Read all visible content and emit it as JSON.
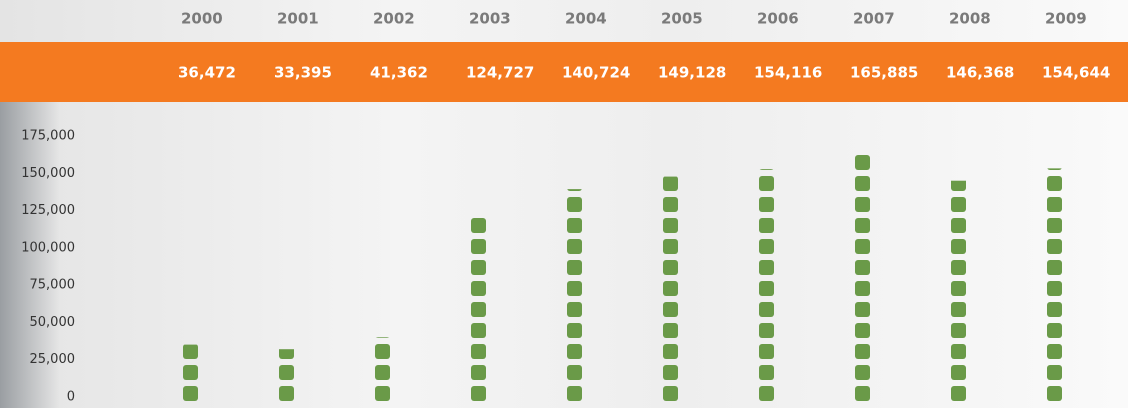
{
  "chart_data": {
    "type": "bar",
    "categories": [
      "2000",
      "2001",
      "2002",
      "2003",
      "2004",
      "2005",
      "2006",
      "2007",
      "2008",
      "2009"
    ],
    "values": [
      36472,
      33395,
      41362,
      124727,
      140724,
      149128,
      154116,
      165885,
      146368,
      154644
    ],
    "value_labels": [
      "36,472",
      "33,395",
      "41,362",
      "124,727",
      "140,724",
      "149,128",
      "154,116",
      "165,885",
      "146,368",
      "154,644"
    ],
    "color": "#6a9a48",
    "ylim": [
      0,
      175000
    ],
    "yticks": [
      0,
      {
        "value": 25000,
        "label": "25,000"
      },
      {
        "value": 50000,
        "label": "50,000"
      },
      {
        "value": 75000,
        "label": "75,000"
      },
      {
        "value": 100000,
        "label": "100,000"
      },
      {
        "value": 125000,
        "label": "125,000"
      },
      {
        "value": 150000,
        "label": "150,000"
      },
      {
        "value": 175000,
        "label": "175,000"
      }
    ]
  }
}
